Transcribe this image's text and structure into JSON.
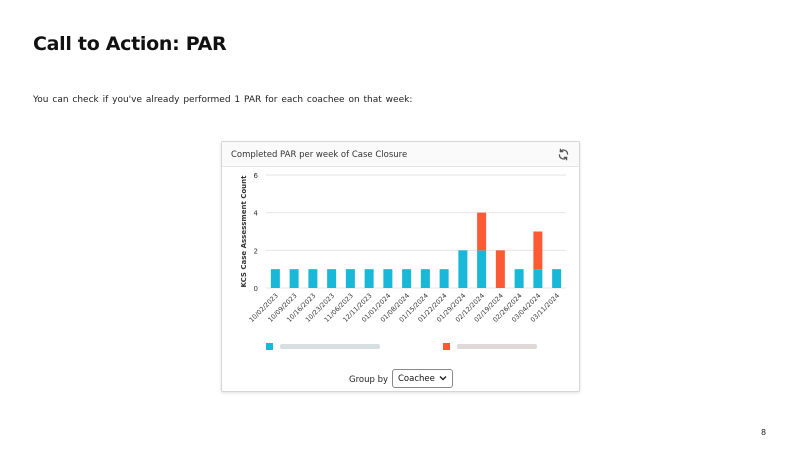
{
  "slide": {
    "title": "Call to Action: PAR",
    "body": "You can check if you've already performed 1 PAR for each coachee on that week:",
    "page_number": "8"
  },
  "card": {
    "title": "Completed PAR per week of Case Closure",
    "refresh_icon": "refresh-icon",
    "group_by_label": "Group by",
    "group_by_value": "Coachee"
  },
  "colors": {
    "series_1": "#1ab8d8",
    "series_2": "#fb5a34",
    "grid": "#e4e4e4",
    "axis_text": "#333333"
  },
  "chart_data": {
    "type": "bar",
    "stacked": true,
    "title": "Completed PAR per week of Case Closure",
    "ylabel": "KCS Case Assessment Count",
    "xlabel": "",
    "ylim": [
      0,
      6
    ],
    "yticks": [
      0,
      2,
      4,
      6
    ],
    "grid": true,
    "legend_position": "bottom",
    "categories": [
      "10/02/2023",
      "10/09/2023",
      "10/16/2023",
      "10/23/2023",
      "11/06/2023",
      "12/11/2023",
      "01/01/2024",
      "01/08/2024",
      "01/15/2024",
      "01/22/2024",
      "01/29/2024",
      "02/12/2024",
      "02/19/2024",
      "02/26/2024",
      "03/04/2024",
      "03/11/2024"
    ],
    "series": [
      {
        "values": [
          1,
          1,
          1,
          1,
          1,
          1,
          1,
          1,
          1,
          1,
          2,
          2,
          0,
          1,
          1,
          1
        ]
      },
      {
        "values": [
          0,
          0,
          0,
          0,
          0,
          0,
          0,
          0,
          0,
          0,
          0,
          2,
          2,
          0,
          2,
          0
        ]
      }
    ]
  }
}
